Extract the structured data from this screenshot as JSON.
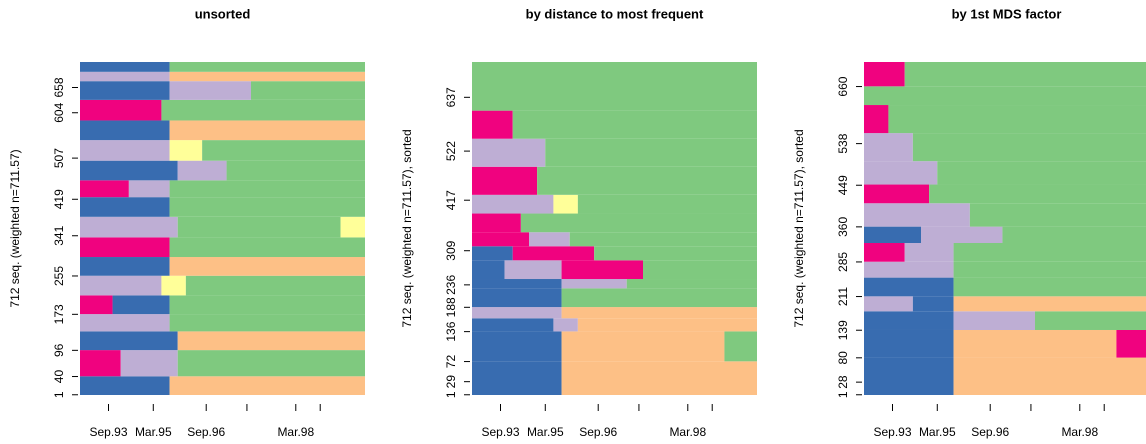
{
  "chart_data": [
    {
      "type": "sequence-index",
      "title": "unsorted",
      "y_label": "712 seq. (weighted n=711.57)",
      "ylim": [
        0,
        712
      ],
      "yticks": [
        1,
        40,
        96,
        173,
        255,
        341,
        419,
        507,
        604,
        658
      ],
      "xlim": [
        0,
        70
      ],
      "xticks": [
        7,
        18,
        31,
        41,
        53,
        59
      ],
      "xtick_labels": [
        "Sep.93",
        "Mar.95",
        "Sep.96",
        null,
        "Mar.98",
        null
      ],
      "state_colors": [
        "#7FC97F",
        "#BEAED4",
        "#FDC086",
        "#FFFF99",
        "#386CB0",
        "#F0027F"
      ],
      "sequences": [
        {
          "n": 40,
          "runs": [
            [
              4,
              22
            ],
            [
              2,
              48
            ]
          ]
        },
        {
          "n": 56,
          "runs": [
            [
              5,
              10
            ],
            [
              1,
              14
            ],
            [
              0,
              46
            ]
          ]
        },
        {
          "n": 40,
          "runs": [
            [
              4,
              24
            ],
            [
              2,
              46
            ]
          ]
        },
        {
          "n": 37,
          "runs": [
            [
              1,
              22
            ],
            [
              0,
              48
            ]
          ]
        },
        {
          "n": 40,
          "runs": [
            [
              5,
              8
            ],
            [
              4,
              14
            ],
            [
              0,
              48
            ]
          ]
        },
        {
          "n": 42,
          "runs": [
            [
              1,
              20
            ],
            [
              3,
              6
            ],
            [
              0,
              44
            ]
          ]
        },
        {
          "n": 40,
          "runs": [
            [
              4,
              22
            ],
            [
              2,
              48
            ]
          ]
        },
        {
          "n": 42,
          "runs": [
            [
              5,
              22
            ],
            [
              0,
              48
            ]
          ]
        },
        {
          "n": 44,
          "runs": [
            [
              1,
              24
            ],
            [
              0,
              40
            ],
            [
              3,
              6
            ]
          ]
        },
        {
          "n": 42,
          "runs": [
            [
              4,
              22
            ],
            [
              0,
              48
            ]
          ]
        },
        {
          "n": 36,
          "runs": [
            [
              5,
              12
            ],
            [
              1,
              10
            ],
            [
              0,
              48
            ]
          ]
        },
        {
          "n": 42,
          "runs": [
            [
              4,
              24
            ],
            [
              1,
              12
            ],
            [
              0,
              34
            ]
          ]
        },
        {
          "n": 44,
          "runs": [
            [
              1,
              22
            ],
            [
              3,
              8
            ],
            [
              0,
              40
            ]
          ]
        },
        {
          "n": 42,
          "runs": [
            [
              4,
              22
            ],
            [
              2,
              48
            ]
          ]
        },
        {
          "n": 44,
          "runs": [
            [
              5,
              20
            ],
            [
              0,
              50
            ]
          ]
        },
        {
          "n": 40,
          "runs": [
            [
              4,
              22
            ],
            [
              1,
              20
            ],
            [
              0,
              28
            ]
          ]
        },
        {
          "n": 20,
          "runs": [
            [
              1,
              22
            ],
            [
              2,
              48
            ]
          ]
        },
        {
          "n": 21,
          "runs": [
            [
              4,
              22
            ],
            [
              0,
              48
            ]
          ]
        }
      ]
    },
    {
      "type": "sequence-index",
      "title": "by distance to most frequent",
      "y_label": "712 seq. (weighted n=711.57), sorted",
      "ylim": [
        0,
        712
      ],
      "yticks": [
        1,
        29,
        72,
        136,
        188,
        236,
        309,
        417,
        522,
        637
      ],
      "xlim": [
        0,
        70
      ],
      "xticks": [
        7,
        18,
        31,
        41,
        53,
        59
      ],
      "xtick_labels": [
        "Sep.93",
        "Mar.95",
        "Sep.96",
        null,
        "Mar.98",
        null
      ],
      "state_colors": [
        "#7FC97F",
        "#BEAED4",
        "#FDC086",
        "#FFFF99",
        "#386CB0",
        "#F0027F"
      ],
      "sequences": [
        {
          "n": 72,
          "runs": [
            [
              4,
              22
            ],
            [
              2,
              48
            ]
          ]
        },
        {
          "n": 64,
          "runs": [
            [
              4,
              22
            ],
            [
              2,
              40
            ],
            [
              0,
              8
            ]
          ]
        },
        {
          "n": 28,
          "runs": [
            [
              4,
              20
            ],
            [
              1,
              6
            ],
            [
              2,
              44
            ]
          ]
        },
        {
          "n": 24,
          "runs": [
            [
              1,
              22
            ],
            [
              2,
              48
            ]
          ]
        },
        {
          "n": 40,
          "runs": [
            [
              4,
              22
            ],
            [
              0,
              48
            ]
          ]
        },
        {
          "n": 20,
          "runs": [
            [
              4,
              22
            ],
            [
              1,
              16
            ],
            [
              0,
              32
            ]
          ]
        },
        {
          "n": 40,
          "runs": [
            [
              4,
              8
            ],
            [
              1,
              14
            ],
            [
              5,
              20
            ],
            [
              0,
              28
            ]
          ]
        },
        {
          "n": 30,
          "runs": [
            [
              4,
              10
            ],
            [
              5,
              20
            ],
            [
              0,
              40
            ]
          ]
        },
        {
          "n": 30,
          "runs": [
            [
              5,
              14
            ],
            [
              1,
              10
            ],
            [
              0,
              46
            ]
          ]
        },
        {
          "n": 40,
          "runs": [
            [
              5,
              12
            ],
            [
              0,
              58
            ]
          ]
        },
        {
          "n": 40,
          "runs": [
            [
              1,
              20
            ],
            [
              3,
              6
            ],
            [
              0,
              44
            ]
          ]
        },
        {
          "n": 60,
          "runs": [
            [
              5,
              16
            ],
            [
              0,
              54
            ]
          ]
        },
        {
          "n": 60,
          "runs": [
            [
              1,
              18
            ],
            [
              0,
              52
            ]
          ]
        },
        {
          "n": 60,
          "runs": [
            [
              5,
              10
            ],
            [
              0,
              60
            ]
          ]
        },
        {
          "n": 104,
          "runs": [
            [
              0,
              70
            ]
          ]
        }
      ]
    },
    {
      "type": "sequence-index",
      "title": "by 1st MDS factor",
      "y_label": "712 seq. (weighted n=711.57), sorted",
      "ylim": [
        0,
        712
      ],
      "yticks": [
        1,
        28,
        80,
        139,
        211,
        285,
        360,
        449,
        538,
        660
      ],
      "xlim": [
        0,
        70
      ],
      "xticks": [
        7,
        18,
        31,
        41,
        53,
        59
      ],
      "xtick_labels": [
        "Sep.93",
        "Mar.95",
        "Sep.96",
        null,
        "Mar.98",
        null
      ],
      "state_colors": [
        "#7FC97F",
        "#BEAED4",
        "#FDC086",
        "#FFFF99",
        "#386CB0",
        "#F0027F"
      ],
      "sequences": [
        {
          "n": 80,
          "runs": [
            [
              4,
              22
            ],
            [
              2,
              48
            ]
          ]
        },
        {
          "n": 59,
          "runs": [
            [
              4,
              22
            ],
            [
              2,
              40
            ],
            [
              5,
              8
            ]
          ]
        },
        {
          "n": 40,
          "runs": [
            [
              4,
              22
            ],
            [
              1,
              20
            ],
            [
              0,
              28
            ]
          ]
        },
        {
          "n": 32,
          "runs": [
            [
              1,
              12
            ],
            [
              4,
              10
            ],
            [
              2,
              48
            ]
          ]
        },
        {
          "n": 40,
          "runs": [
            [
              4,
              22
            ],
            [
              0,
              48
            ]
          ]
        },
        {
          "n": 34,
          "runs": [
            [
              1,
              22
            ],
            [
              0,
              48
            ]
          ]
        },
        {
          "n": 40,
          "runs": [
            [
              5,
              10
            ],
            [
              1,
              12
            ],
            [
              0,
              48
            ]
          ]
        },
        {
          "n": 35,
          "runs": [
            [
              4,
              14
            ],
            [
              1,
              20
            ],
            [
              0,
              36
            ]
          ]
        },
        {
          "n": 50,
          "runs": [
            [
              1,
              26
            ],
            [
              0,
              44
            ]
          ]
        },
        {
          "n": 40,
          "runs": [
            [
              5,
              16
            ],
            [
              0,
              54
            ]
          ]
        },
        {
          "n": 50,
          "runs": [
            [
              1,
              18
            ],
            [
              0,
              52
            ]
          ]
        },
        {
          "n": 60,
          "runs": [
            [
              1,
              12
            ],
            [
              0,
              58
            ]
          ]
        },
        {
          "n": 60,
          "runs": [
            [
              5,
              6
            ],
            [
              0,
              64
            ]
          ]
        },
        {
          "n": 40,
          "runs": [
            [
              0,
              70
            ]
          ]
        },
        {
          "n": 52,
          "runs": [
            [
              5,
              10
            ],
            [
              0,
              60
            ]
          ]
        }
      ]
    }
  ]
}
